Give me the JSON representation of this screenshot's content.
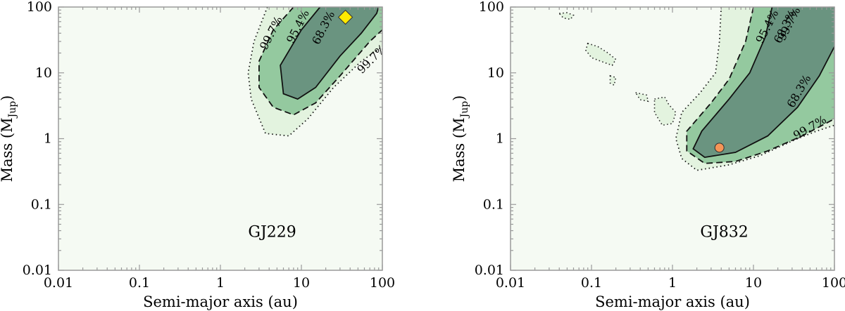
{
  "chart_data": [
    {
      "type": "contour",
      "panel_label": "GJ229",
      "xlabel": "Semi-major axis (au)",
      "ylabel": "Mass (M",
      "ylabel_sub": "Jup",
      "ylabel_close": ")",
      "xscale": "log",
      "yscale": "log",
      "xlim": [
        0.01,
        100
      ],
      "ylim": [
        0.01,
        100
      ],
      "xticks": [
        "0.01",
        "0.1",
        "1",
        "10",
        "100"
      ],
      "yticks": [
        "0.01",
        "0.1",
        "1",
        "10",
        "100"
      ],
      "colors": {
        "level_997": "#e3f3df",
        "level_954": "#94c99f",
        "level_683": "#6a9480",
        "background": "#f5faf3"
      },
      "contours": [
        {
          "level": "99.7%",
          "style": "dotted",
          "points": [
            [
              3.8,
              100
            ],
            [
              2.6,
              30
            ],
            [
              2.2,
              10
            ],
            [
              2.4,
              4
            ],
            [
              3.6,
              1.2
            ],
            [
              7,
              1.1
            ],
            [
              12,
              2
            ],
            [
              25,
              6
            ],
            [
              55,
              15
            ],
            [
              100,
              25
            ]
          ]
        },
        {
          "level": "95.4%",
          "style": "dashed",
          "points": [
            [
              8,
              100
            ],
            [
              4.5,
              45
            ],
            [
              3,
              15
            ],
            [
              3,
              6
            ],
            [
              4.5,
              3
            ],
            [
              8,
              2.3
            ],
            [
              15,
              3.5
            ],
            [
              30,
              9
            ],
            [
              70,
              30
            ],
            [
              100,
              45
            ]
          ]
        },
        {
          "level": "68.3%",
          "style": "solid",
          "points": [
            [
              17,
              100
            ],
            [
              10,
              45
            ],
            [
              5.5,
              13
            ],
            [
              6,
              4.8
            ],
            [
              9,
              4
            ],
            [
              15,
              6
            ],
            [
              30,
              18
            ],
            [
              55,
              40
            ],
            [
              85,
              80
            ],
            [
              90,
              100
            ]
          ]
        }
      ],
      "contour_labels": [
        {
          "text": "99.7%",
          "x": 4.3,
          "y": 40,
          "angle": -63
        },
        {
          "text": "95.4%",
          "x": 9.2,
          "y": 50,
          "angle": -63
        },
        {
          "text": "68.3%",
          "x": 19,
          "y": 48,
          "angle": -63
        },
        {
          "text": "99.7%",
          "x": 75,
          "y": 16,
          "angle": -45
        }
      ],
      "marker": {
        "shape": "diamond",
        "x": 35,
        "y": 70,
        "color": "#ffea00"
      }
    },
    {
      "type": "contour",
      "panel_label": "GJ832",
      "xlabel": "Semi-major axis (au)",
      "ylabel": "Mass (M",
      "ylabel_sub": "Jup",
      "ylabel_close": ")",
      "xscale": "log",
      "yscale": "log",
      "xlim": [
        0.01,
        100
      ],
      "ylim": [
        0.01,
        100
      ],
      "xticks": [
        "0.01",
        "0.1",
        "1",
        "10",
        "100"
      ],
      "yticks": [
        "0.01",
        "0.1",
        "1",
        "10",
        "100"
      ],
      "colors": {
        "level_997": "#e3f3df",
        "level_954": "#94c99f",
        "level_683": "#6a9480",
        "background": "#f5faf3"
      },
      "contours": [
        {
          "level": "99.7%",
          "style": "dotted",
          "points": [
            [
              4,
              100
            ],
            [
              3.8,
              30
            ],
            [
              3.4,
              10
            ],
            [
              2.2,
              5
            ],
            [
              1.3,
              2.5
            ],
            [
              1.1,
              1
            ],
            [
              1.3,
              0.5
            ],
            [
              2,
              0.33
            ],
            [
              5,
              0.4
            ],
            [
              12,
              0.55
            ],
            [
              35,
              1
            ],
            [
              60,
              1.3
            ],
            [
              100,
              1.6
            ]
          ]
        },
        {
          "level": "95.4%",
          "style": "dashed",
          "points": [
            [
              10,
              100
            ],
            [
              8,
              30
            ],
            [
              5,
              8
            ],
            [
              3,
              3.5
            ],
            [
              1.5,
              1.3
            ],
            [
              1.5,
              0.65
            ],
            [
              2.5,
              0.42
            ],
            [
              6,
              0.45
            ],
            [
              15,
              0.65
            ],
            [
              40,
              1.1
            ],
            [
              100,
              2
            ]
          ]
        },
        {
          "level": "68.3%",
          "style": "solid",
          "points": [
            [
              17,
              100
            ],
            [
              14,
              35
            ],
            [
              9,
              10
            ],
            [
              5,
              4
            ],
            [
              2.3,
              1.3
            ],
            [
              1.8,
              0.7
            ],
            [
              2.5,
              0.52
            ],
            [
              6,
              0.62
            ],
            [
              15,
              1.1
            ],
            [
              35,
              3
            ],
            [
              65,
              9
            ],
            [
              100,
              25
            ]
          ]
        }
      ],
      "islands": [
        [
          [
            0.04,
            80
          ],
          [
            0.05,
            82
          ],
          [
            0.06,
            75
          ],
          [
            0.055,
            65
          ],
          [
            0.045,
            68
          ]
        ],
        [
          [
            0.09,
            28
          ],
          [
            0.12,
            25
          ],
          [
            0.16,
            20
          ],
          [
            0.2,
            16
          ],
          [
            0.18,
            13
          ],
          [
            0.13,
            15
          ],
          [
            0.1,
            17
          ],
          [
            0.085,
            22
          ]
        ],
        [
          [
            0.17,
            9
          ],
          [
            0.2,
            8.5
          ],
          [
            0.19,
            6.5
          ],
          [
            0.17,
            7
          ]
        ],
        [
          [
            0.35,
            5
          ],
          [
            0.48,
            4.6
          ],
          [
            0.5,
            3.7
          ],
          [
            0.4,
            3.9
          ]
        ],
        [
          [
            0.6,
            4
          ],
          [
            0.8,
            4.3
          ],
          [
            0.9,
            3.3
          ],
          [
            1.1,
            2.5
          ],
          [
            1,
            1.7
          ],
          [
            0.75,
            1.6
          ],
          [
            0.6,
            2.5
          ]
        ]
      ],
      "contour_labels": [
        {
          "text": "99.7%",
          "x": 28,
          "y": 55,
          "angle": -63
        },
        {
          "text": "95.4%",
          "x": 15,
          "y": 50,
          "angle": -63
        },
        {
          "text": "68.3%",
          "x": 25,
          "y": 50,
          "angle": -63
        },
        {
          "text": "68.3%",
          "x": 37,
          "y": 5.2,
          "angle": -60
        },
        {
          "text": "99.7%",
          "x": 50,
          "y": 1.45,
          "angle": -30
        }
      ],
      "marker": {
        "shape": "circle",
        "x": 3.8,
        "y": 0.73,
        "color": "#f59557"
      }
    }
  ]
}
